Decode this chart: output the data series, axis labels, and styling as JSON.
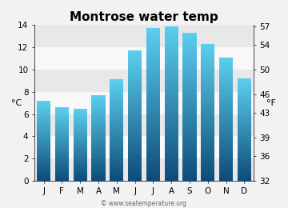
{
  "title": "Montrose water temp",
  "months": [
    "J",
    "F",
    "M",
    "A",
    "M",
    "J",
    "J",
    "A",
    "S",
    "O",
    "N",
    "D"
  ],
  "values_c": [
    7.2,
    6.6,
    6.5,
    7.7,
    9.1,
    11.7,
    13.7,
    13.9,
    13.3,
    12.3,
    11.1,
    9.2
  ],
  "ylabel_left": "°C",
  "ylabel_right": "°F",
  "ylim_c": [
    0,
    14
  ],
  "yticks_c": [
    0,
    2,
    4,
    6,
    8,
    10,
    12,
    14
  ],
  "yticks_f": [
    32,
    36,
    39,
    43,
    46,
    50,
    54,
    57
  ],
  "bar_color_top": "#5bcfee",
  "bar_color_bottom": "#0d4a7a",
  "bg_color": "#f2f2f2",
  "plot_bg_light": "#e8e8e8",
  "stripe_color": "#f8f8f8",
  "stripe_ranges": [
    [
      10,
      12
    ],
    [
      6,
      8
    ],
    [
      2,
      4
    ]
  ],
  "watermark": "© www.seatemperature.org",
  "title_fontsize": 11,
  "axis_fontsize": 8,
  "tick_fontsize": 7.5,
  "bar_width": 0.75
}
